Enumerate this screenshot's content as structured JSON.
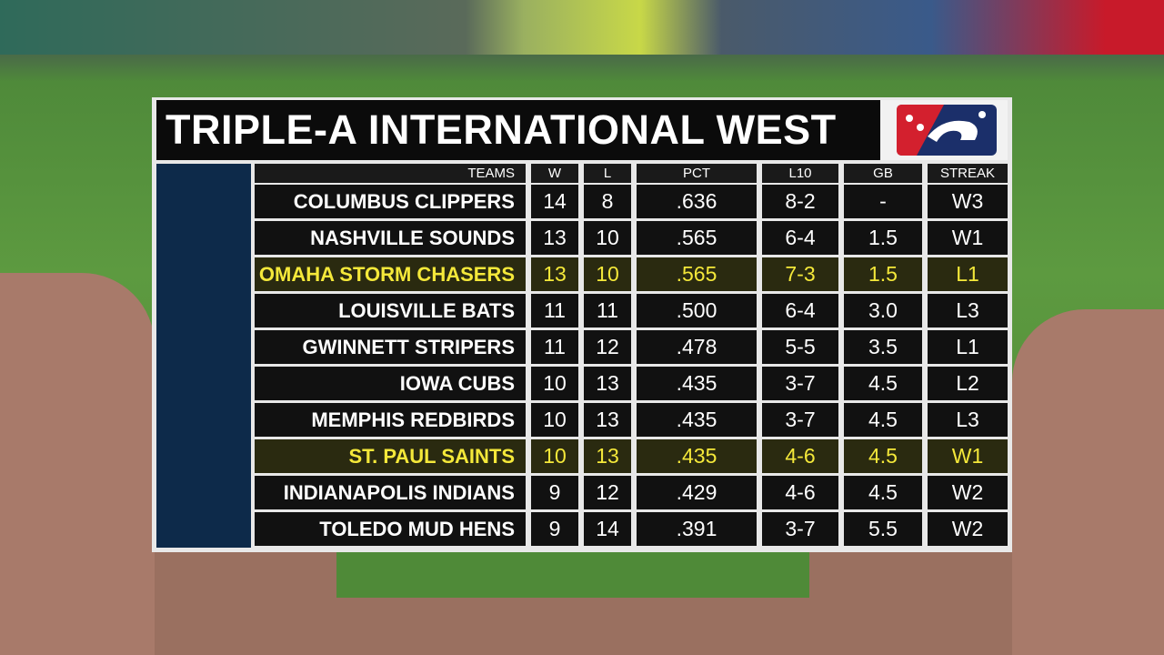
{
  "title": "TRIPLE-A INTERNATIONAL WEST",
  "table": {
    "header": [
      "TEAMS",
      "W",
      "L",
      "PCT",
      "L10",
      "GB",
      "STREAK"
    ],
    "rows": [
      [
        "COLUMBUS CLIPPERS",
        "14",
        "8",
        ".636",
        "8-2",
        "-",
        "W3"
      ],
      [
        "NASHVILLE SOUNDS",
        "13",
        "10",
        ".565",
        "6-4",
        "1.5",
        "W1"
      ],
      [
        "OMAHA STORM CHASERS",
        "13",
        "10",
        ".565",
        "7-3",
        "1.5",
        "L1"
      ],
      [
        "LOUISVILLE BATS",
        "11",
        "11",
        ".500",
        "6-4",
        "3.0",
        "L3"
      ],
      [
        "GWINNETT STRIPERS",
        "11",
        "12",
        ".478",
        "5-5",
        "3.5",
        "L1"
      ],
      [
        "IOWA CUBS",
        "10",
        "13",
        ".435",
        "3-7",
        "4.5",
        "L2"
      ],
      [
        "MEMPHIS REDBIRDS",
        "10",
        "13",
        ".435",
        "3-7",
        "4.5",
        "L3"
      ],
      [
        "ST. PAUL SAINTS",
        "10",
        "13",
        ".435",
        "4-6",
        "4.5",
        "W1"
      ],
      [
        "INDIANAPOLIS INDIANS",
        "9",
        "12",
        ".429",
        "4-6",
        "4.5",
        "W2"
      ],
      [
        "TOLEDO MUD HENS",
        "9",
        "14",
        ".391",
        "3-7",
        "5.5",
        "W2"
      ]
    ]
  }
}
